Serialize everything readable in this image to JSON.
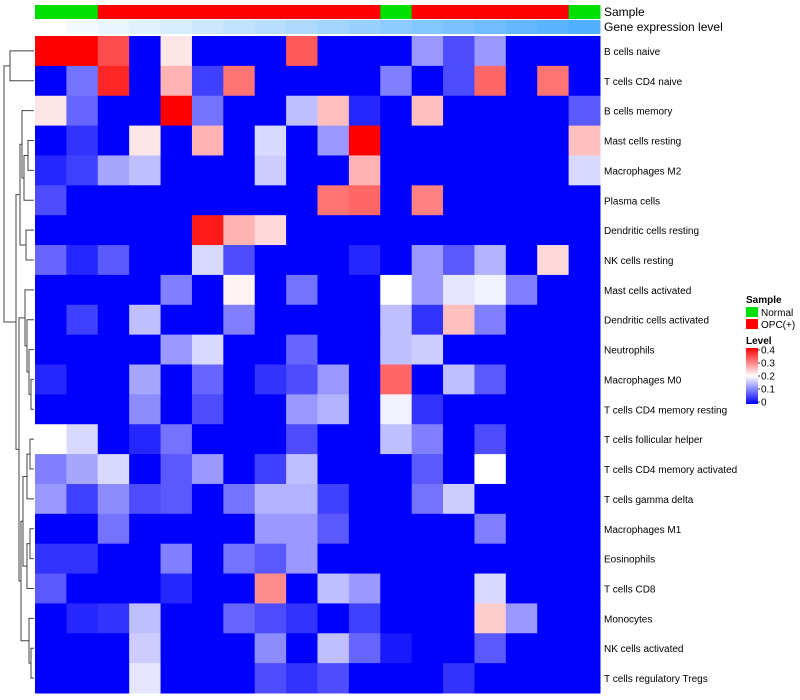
{
  "chart_data": {
    "type": "heatmap",
    "title": "",
    "xlabel": "",
    "ylabel": "",
    "color_scale": {
      "low": "#0000FF",
      "mid": "#FFFFFF",
      "high": "#FF0000",
      "min": 0,
      "mid_value": 0.2,
      "max": 0.4
    },
    "annotation_tracks": [
      {
        "name": "Sample",
        "values": [
          "Normal",
          "Normal",
          "OPC(+)",
          "OPC(+)",
          "OPC(+)",
          "OPC(+)",
          "OPC(+)",
          "OPC(+)",
          "OPC(+)",
          "OPC(+)",
          "OPC(+)",
          "Normal",
          "OPC(+)",
          "OPC(+)",
          "OPC(+)",
          "OPC(+)",
          "OPC(+)",
          "Normal"
        ]
      },
      {
        "name": "Gene expression level",
        "values": [
          0.0,
          0.02,
          0.04,
          0.06,
          0.08,
          0.1,
          0.12,
          0.14,
          0.16,
          0.18,
          0.2,
          0.22,
          0.24,
          0.26,
          0.28,
          0.3,
          0.32,
          0.34
        ]
      }
    ],
    "rows": [
      "B cells naive",
      "T cells CD4 naive",
      "B cells memory",
      "Mast cells resting",
      "Macrophages M2",
      "Plasma cells",
      "Dendritic cells resting",
      "NK cells resting",
      "Mast cells activated",
      "Dendritic cells activated",
      "Neutrophils",
      "Macrophages M0",
      "T cells CD4 memory resting",
      "T cells follicular helper",
      "T cells CD4 memory activated",
      "T cells gamma delta",
      "Macrophages M1",
      "Eosinophils",
      "T cells CD8",
      "Monocytes",
      "NK cells activated",
      "T cells regulatory  Tregs"
    ],
    "values": [
      [
        0.4,
        0.4,
        0.34,
        0.0,
        0.22,
        0.0,
        0.0,
        0.0,
        0.33,
        0.0,
        0.0,
        0.0,
        0.12,
        0.06,
        0.12,
        0.0,
        0.0,
        0.0
      ],
      [
        0.0,
        0.09,
        0.37,
        0.0,
        0.26,
        0.05,
        0.31,
        0.0,
        0.0,
        0.0,
        0.0,
        0.1,
        0.0,
        0.06,
        0.32,
        0.0,
        0.31,
        0.0
      ],
      [
        0.22,
        0.08,
        0.0,
        0.0,
        0.4,
        0.09,
        0.0,
        0.0,
        0.15,
        0.25,
        0.03,
        0.0,
        0.25,
        0.0,
        0.0,
        0.0,
        0.0,
        0.07
      ],
      [
        0.0,
        0.04,
        0.0,
        0.22,
        0.0,
        0.26,
        0.0,
        0.17,
        0.0,
        0.12,
        0.4,
        0.0,
        0.0,
        0.0,
        0.0,
        0.0,
        0.0,
        0.25
      ],
      [
        0.03,
        0.05,
        0.13,
        0.15,
        0.0,
        0.0,
        0.0,
        0.16,
        0.0,
        0.0,
        0.26,
        0.0,
        0.0,
        0.0,
        0.0,
        0.0,
        0.0,
        0.17
      ],
      [
        0.06,
        0.0,
        0.0,
        0.0,
        0.0,
        0.0,
        0.0,
        0.0,
        0.0,
        0.31,
        0.32,
        0.0,
        0.3,
        0.0,
        0.0,
        0.0,
        0.0,
        0.0
      ],
      [
        0.0,
        0.0,
        0.0,
        0.0,
        0.0,
        0.38,
        0.26,
        0.23,
        0.0,
        0.0,
        0.0,
        0.0,
        0.0,
        0.0,
        0.0,
        0.0,
        0.0,
        0.0
      ],
      [
        0.08,
        0.03,
        0.07,
        0.0,
        0.0,
        0.17,
        0.06,
        0.0,
        0.0,
        0.0,
        0.03,
        0.0,
        0.12,
        0.07,
        0.14,
        0.0,
        0.23,
        0.0
      ],
      [
        0.0,
        0.0,
        0.0,
        0.0,
        0.1,
        0.0,
        0.21,
        0.0,
        0.09,
        0.0,
        0.0,
        0.2,
        0.12,
        0.18,
        0.19,
        0.1,
        0.0,
        0.0
      ],
      [
        0.0,
        0.05,
        0.0,
        0.15,
        0.0,
        0.0,
        0.1,
        0.0,
        0.0,
        0.0,
        0.0,
        0.15,
        0.04,
        0.25,
        0.1,
        0.0,
        0.0,
        0.0
      ],
      [
        0.0,
        0.0,
        0.0,
        0.0,
        0.12,
        0.17,
        0.0,
        0.0,
        0.08,
        0.0,
        0.0,
        0.15,
        0.16,
        0.0,
        0.0,
        0.0,
        0.0,
        0.0
      ],
      [
        0.03,
        0.0,
        0.0,
        0.13,
        0.0,
        0.08,
        0.0,
        0.04,
        0.06,
        0.12,
        0.0,
        0.32,
        0.0,
        0.15,
        0.07,
        0.0,
        0.0,
        0.0
      ],
      [
        0.0,
        0.0,
        0.0,
        0.11,
        0.0,
        0.06,
        0.0,
        0.0,
        0.12,
        0.14,
        0.0,
        0.19,
        0.04,
        0.0,
        0.0,
        0.0,
        0.0,
        0.0
      ],
      [
        0.2,
        0.17,
        0.0,
        0.03,
        0.09,
        0.0,
        0.0,
        0.0,
        0.06,
        0.0,
        0.0,
        0.15,
        0.1,
        0.0,
        0.06,
        0.0,
        0.0,
        0.0
      ],
      [
        0.1,
        0.13,
        0.17,
        0.0,
        0.07,
        0.12,
        0.0,
        0.05,
        0.15,
        0.0,
        0.0,
        0.0,
        0.07,
        0.0,
        0.2,
        0.0,
        0.0,
        0.0
      ],
      [
        0.12,
        0.05,
        0.11,
        0.06,
        0.07,
        0.0,
        0.09,
        0.14,
        0.14,
        0.05,
        0.0,
        0.0,
        0.09,
        0.16,
        0.0,
        0.0,
        0.0,
        0.0
      ],
      [
        0.0,
        0.0,
        0.09,
        0.0,
        0.0,
        0.0,
        0.0,
        0.12,
        0.12,
        0.07,
        0.0,
        0.0,
        0.0,
        0.0,
        0.1,
        0.0,
        0.0,
        0.0
      ],
      [
        0.04,
        0.04,
        0.0,
        0.0,
        0.1,
        0.0,
        0.09,
        0.07,
        0.12,
        0.0,
        0.0,
        0.0,
        0.0,
        0.0,
        0.0,
        0.0,
        0.0,
        0.0
      ],
      [
        0.07,
        0.0,
        0.0,
        0.0,
        0.03,
        0.0,
        0.0,
        0.29,
        0.0,
        0.15,
        0.12,
        0.0,
        0.0,
        0.0,
        0.17,
        0.0,
        0.0,
        0.0
      ],
      [
        0.0,
        0.03,
        0.04,
        0.15,
        0.0,
        0.0,
        0.08,
        0.06,
        0.04,
        0.0,
        0.05,
        0.0,
        0.0,
        0.0,
        0.24,
        0.12,
        0.0,
        0.0
      ],
      [
        0.0,
        0.0,
        0.0,
        0.16,
        0.0,
        0.0,
        0.0,
        0.11,
        0.0,
        0.15,
        0.08,
        0.02,
        0.0,
        0.0,
        0.07,
        0.0,
        0.0,
        0.0
      ],
      [
        0.0,
        0.0,
        0.0,
        0.18,
        0.0,
        0.0,
        0.0,
        0.06,
        0.04,
        0.06,
        0.0,
        0.0,
        0.0,
        0.04,
        0.0,
        0.0,
        0.0,
        0.0
      ]
    ],
    "legend": {
      "position": "right",
      "sample_title": "Sample",
      "sample_entries": [
        {
          "label": "Normal",
          "color": "#00E000"
        },
        {
          "label": "OPC(+)",
          "color": "#FF0000"
        }
      ],
      "level_title": "Level",
      "level_ticks": [
        "0.4",
        "0.3",
        "0.2",
        "0.1",
        "0"
      ]
    },
    "dendrogram": "row clustering tree on left"
  }
}
